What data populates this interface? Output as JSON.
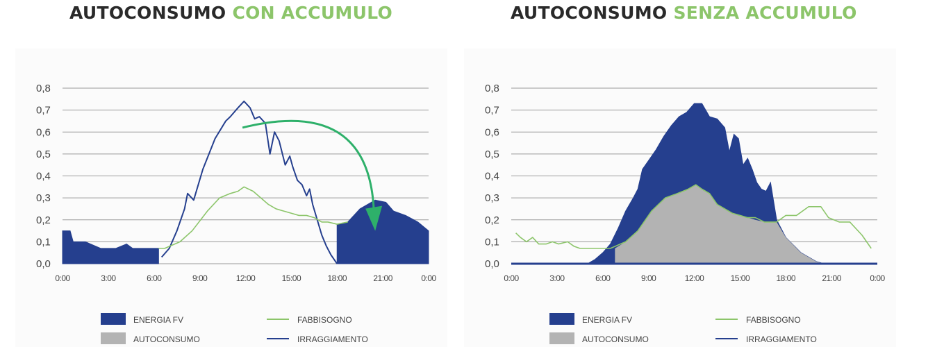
{
  "colors": {
    "dark": "#2a2a2a",
    "green": "#8cc56a",
    "energia_fv": "#253f8e",
    "autoconsumo": "#b3b3b3",
    "fabbisogno": "#8cc56a",
    "irraggiamento": "#253f8e",
    "arrow": "#2eb06a",
    "grid": "#999999"
  },
  "titles": {
    "left_main": "AUTOCONSUMO ",
    "left_accent": "CON ACCUMULO",
    "right_main": "AUTOCONSUMO ",
    "right_accent": "SENZA ACCUMULO"
  },
  "legend": {
    "energia_fv": "ENERGIA FV",
    "autoconsumo": "AUTOCONSUMO",
    "fabbisogno": "FABBISOGNO",
    "irraggiamento": "IRRAGGIAMENTO"
  },
  "chart_data": [
    {
      "type": "area",
      "title": "AUTOCONSUMO CON ACCUMULO",
      "x_ticks": [
        "0:00",
        "3:00",
        "6:00",
        "9:00",
        "12:00",
        "15:00",
        "18:00",
        "21:00",
        "0:00"
      ],
      "y_ticks": [
        "0,0",
        "0,1",
        "0,2",
        "0,3",
        "0,4",
        "0,5",
        "0,6",
        "0,7",
        "0,8"
      ],
      "ylim": [
        0,
        0.8
      ],
      "xlim": [
        0,
        24
      ],
      "grid": true,
      "legend_position": "bottom",
      "arrow": {
        "from": [
          11.8,
          0.62
        ],
        "to": [
          20.5,
          0.15
        ]
      },
      "series": [
        {
          "name": "ENERGIA FV",
          "kind": "area",
          "segments": [
            [
              [
                0,
                0.15
              ],
              [
                0.5,
                0.15
              ],
              [
                0.7,
                0.1
              ],
              [
                1.5,
                0.1
              ],
              [
                2.5,
                0.07
              ],
              [
                3.5,
                0.07
              ],
              [
                4.2,
                0.09
              ],
              [
                4.6,
                0.07
              ],
              [
                5.3,
                0.07
              ],
              [
                6.3,
                0.07
              ]
            ],
            [
              [
                18.0,
                0.18
              ],
              [
                18.7,
                0.19
              ],
              [
                19.5,
                0.25
              ],
              [
                20.5,
                0.29
              ],
              [
                21.2,
                0.28
              ],
              [
                21.7,
                0.24
              ],
              [
                22.5,
                0.22
              ],
              [
                23.3,
                0.19
              ],
              [
                24.0,
                0.15
              ]
            ]
          ]
        },
        {
          "name": "FABBISOGNO",
          "kind": "line",
          "x": [
            6.3,
            6.7,
            7.7,
            8.5,
            9.5,
            10.3,
            11.0,
            11.5,
            11.9,
            12.5,
            13.0,
            13.5,
            14.0,
            14.5,
            15.0,
            15.5,
            16.0,
            16.5,
            17.0,
            17.4,
            18.0,
            18.7
          ],
          "values": [
            0.07,
            0.07,
            0.1,
            0.15,
            0.24,
            0.3,
            0.32,
            0.33,
            0.35,
            0.33,
            0.3,
            0.27,
            0.25,
            0.24,
            0.23,
            0.22,
            0.22,
            0.21,
            0.19,
            0.19,
            0.18,
            0.19
          ]
        },
        {
          "name": "IRRAGGIAMENTO",
          "kind": "line",
          "x": [
            6.5,
            7.0,
            7.5,
            8.0,
            8.2,
            8.6,
            9.2,
            10.0,
            10.7,
            11.0,
            11.5,
            11.9,
            12.3,
            12.6,
            12.9,
            13.3,
            13.6,
            13.9,
            14.2,
            14.6,
            14.9,
            15.1,
            15.4,
            15.7,
            16.0,
            16.2,
            16.4,
            16.7,
            17.0,
            17.3,
            17.6,
            18.0
          ],
          "values": [
            0.03,
            0.07,
            0.15,
            0.25,
            0.32,
            0.29,
            0.43,
            0.57,
            0.65,
            0.67,
            0.71,
            0.74,
            0.71,
            0.66,
            0.67,
            0.64,
            0.5,
            0.6,
            0.56,
            0.45,
            0.49,
            0.44,
            0.38,
            0.36,
            0.31,
            0.34,
            0.27,
            0.2,
            0.13,
            0.08,
            0.04,
            0.0
          ]
        }
      ]
    },
    {
      "type": "area",
      "title": "AUTOCONSUMO SENZA ACCUMULO",
      "x_ticks": [
        "0:00",
        "3:00",
        "6:00",
        "9:00",
        "12:00",
        "15:00",
        "18:00",
        "21:00",
        "0:00"
      ],
      "y_ticks": [
        "0,0",
        "0,1",
        "0,2",
        "0,3",
        "0,4",
        "0,5",
        "0,6",
        "0,7",
        "0,8"
      ],
      "ylim": [
        0,
        0.8
      ],
      "xlim": [
        0,
        24
      ],
      "grid": true,
      "legend_position": "bottom",
      "series": [
        {
          "name": "ENERGIA FV",
          "kind": "area",
          "x": [
            5.0,
            5.5,
            6.0,
            6.5,
            7.0,
            7.5,
            8.0,
            8.3,
            8.6,
            9.0,
            9.5,
            10.0,
            10.5,
            11.0,
            11.5,
            12.0,
            12.5,
            13.0,
            13.5,
            14.0,
            14.3,
            14.6,
            14.9,
            15.2,
            15.5,
            15.8,
            16.1,
            16.4,
            16.7,
            17.0,
            17.4,
            18.0,
            19.0,
            20.0,
            20.5
          ],
          "values": [
            0.0,
            0.02,
            0.05,
            0.09,
            0.16,
            0.24,
            0.3,
            0.34,
            0.43,
            0.47,
            0.52,
            0.58,
            0.63,
            0.67,
            0.69,
            0.73,
            0.73,
            0.67,
            0.66,
            0.62,
            0.51,
            0.59,
            0.57,
            0.45,
            0.48,
            0.43,
            0.37,
            0.34,
            0.33,
            0.37,
            0.2,
            0.12,
            0.05,
            0.01,
            0.0
          ]
        },
        {
          "name": "AUTOCONSUMO",
          "kind": "area",
          "x": [
            6.8,
            7.5,
            8.3,
            9.2,
            10.1,
            10.9,
            11.6,
            12.1,
            12.5,
            13.0,
            13.5,
            14.0,
            14.5,
            15.0,
            15.5,
            16.0,
            16.6,
            17.0,
            17.4,
            18.0,
            19.0,
            20.0,
            20.5
          ],
          "values": [
            0.07,
            0.1,
            0.15,
            0.24,
            0.3,
            0.32,
            0.34,
            0.36,
            0.34,
            0.32,
            0.27,
            0.25,
            0.23,
            0.22,
            0.21,
            0.2,
            0.19,
            0.19,
            0.19,
            0.12,
            0.05,
            0.01,
            0.0
          ]
        },
        {
          "name": "FABBISOGNO",
          "kind": "line",
          "x": [
            0.3,
            0.6,
            1.0,
            1.4,
            1.8,
            2.3,
            2.7,
            3.1,
            3.7,
            4.1,
            4.5,
            5.5,
            6.5,
            7.5,
            8.3,
            9.2,
            10.1,
            10.9,
            11.6,
            12.1,
            12.5,
            13.0,
            13.5,
            14.0,
            14.5,
            15.0,
            15.5,
            16.0,
            16.6,
            17.0,
            17.4,
            18.0,
            18.7,
            19.5,
            20.3,
            20.8,
            21.5,
            22.2,
            23.0,
            23.6
          ],
          "values": [
            0.14,
            0.12,
            0.1,
            0.12,
            0.09,
            0.09,
            0.1,
            0.09,
            0.1,
            0.08,
            0.07,
            0.07,
            0.07,
            0.1,
            0.15,
            0.24,
            0.3,
            0.32,
            0.34,
            0.36,
            0.34,
            0.32,
            0.27,
            0.25,
            0.23,
            0.22,
            0.21,
            0.21,
            0.19,
            0.19,
            0.19,
            0.22,
            0.22,
            0.26,
            0.26,
            0.21,
            0.19,
            0.19,
            0.13,
            0.07
          ]
        },
        {
          "name": "IRRAGGIAMENTO",
          "kind": "line",
          "x": [
            0,
            24
          ],
          "values": [
            0.0,
            0.0
          ]
        }
      ]
    }
  ]
}
